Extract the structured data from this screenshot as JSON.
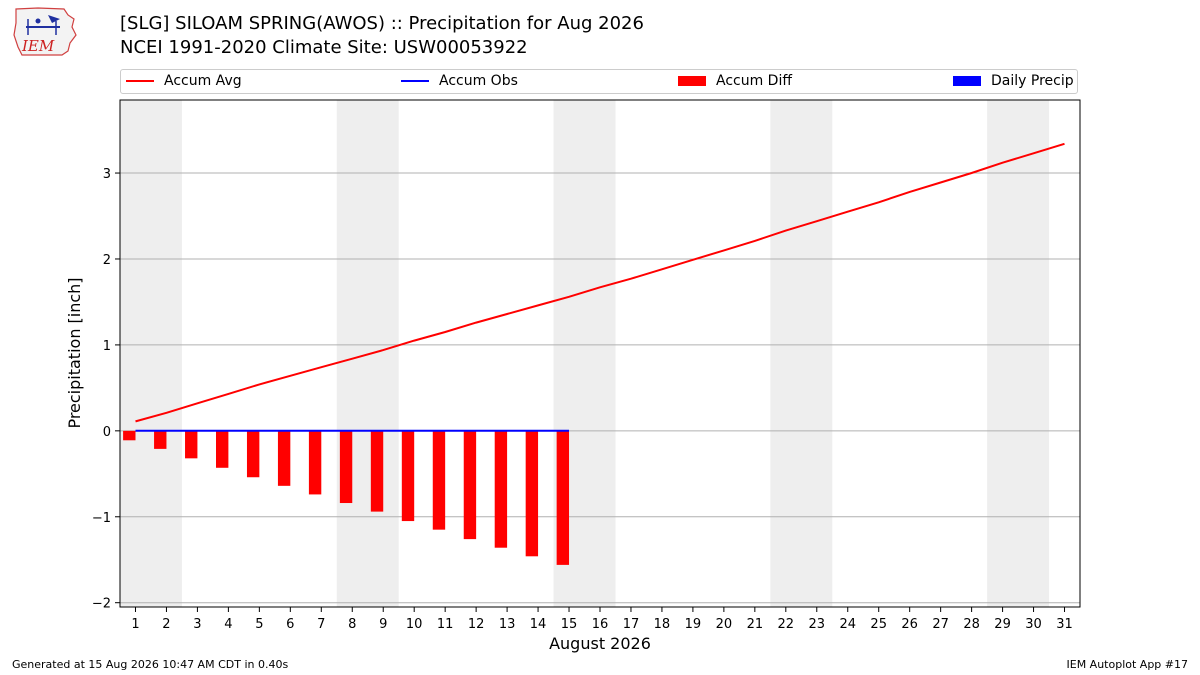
{
  "header": {
    "title": "[SLG] SILOAM SPRING(AWOS) :: Precipitation for Aug 2026",
    "subtitle": "NCEI 1991-2020 Climate Site: USW00053922",
    "logo_text": "IEM"
  },
  "legend": {
    "items": [
      {
        "label": "Accum Avg",
        "kind": "line",
        "color": "#ff0000"
      },
      {
        "label": "Accum Obs",
        "kind": "line",
        "color": "#0000ff"
      },
      {
        "label": "Accum Diff",
        "kind": "box",
        "color": "#ff0000"
      },
      {
        "label": "Daily Precip",
        "kind": "box",
        "color": "#0000ff"
      }
    ]
  },
  "footer": {
    "left": "Generated at 15 Aug 2026 10:47 AM CDT in 0.40s",
    "right": "IEM Autoplot App #17"
  },
  "chart_data": {
    "type": "bar",
    "xlabel": "August 2026",
    "ylabel": "Precipitation [inch]",
    "xlim": [
      0.5,
      31.5
    ],
    "ylim": [
      -2.05,
      3.85
    ],
    "yticks": [
      -2,
      -1,
      0,
      1,
      2,
      3
    ],
    "xticks": [
      1,
      2,
      3,
      4,
      5,
      6,
      7,
      8,
      9,
      10,
      11,
      12,
      13,
      14,
      15,
      16,
      17,
      18,
      19,
      20,
      21,
      22,
      23,
      24,
      25,
      26,
      27,
      28,
      29,
      30,
      31
    ],
    "grid": "horizontal",
    "weekend_shading": [
      [
        1,
        2
      ],
      [
        8,
        9
      ],
      [
        15,
        16
      ],
      [
        22,
        23
      ],
      [
        29,
        30
      ]
    ],
    "colors": {
      "accum_avg": "#ff0000",
      "accum_obs": "#0000ff",
      "accum_diff": "#ff0000",
      "daily_precip": "#0000ff",
      "weekend": "#eeeeee",
      "grid": "#b0b0b0"
    },
    "series": [
      {
        "name": "Accum Avg",
        "type": "line",
        "x": [
          1,
          2,
          3,
          4,
          5,
          6,
          7,
          8,
          9,
          10,
          11,
          12,
          13,
          14,
          15,
          16,
          17,
          18,
          19,
          20,
          21,
          22,
          23,
          24,
          25,
          26,
          27,
          28,
          29,
          30,
          31
        ],
        "values": [
          0.11,
          0.21,
          0.32,
          0.43,
          0.54,
          0.64,
          0.74,
          0.84,
          0.94,
          1.05,
          1.15,
          1.26,
          1.36,
          1.46,
          1.56,
          1.67,
          1.77,
          1.88,
          1.99,
          2.1,
          2.21,
          2.33,
          2.44,
          2.55,
          2.66,
          2.78,
          2.89,
          3.0,
          3.12,
          3.23,
          3.34
        ]
      },
      {
        "name": "Accum Obs",
        "type": "line",
        "x": [
          1,
          2,
          3,
          4,
          5,
          6,
          7,
          8,
          9,
          10,
          11,
          12,
          13,
          14,
          15
        ],
        "values": [
          0,
          0,
          0,
          0,
          0,
          0,
          0,
          0,
          0,
          0,
          0,
          0,
          0,
          0,
          0
        ]
      },
      {
        "name": "Accum Diff",
        "type": "bar",
        "x": [
          1,
          2,
          3,
          4,
          5,
          6,
          7,
          8,
          9,
          10,
          11,
          12,
          13,
          14,
          15
        ],
        "values": [
          -0.11,
          -0.21,
          -0.32,
          -0.43,
          -0.54,
          -0.64,
          -0.74,
          -0.84,
          -0.94,
          -1.05,
          -1.15,
          -1.26,
          -1.36,
          -1.46,
          -1.56
        ]
      },
      {
        "name": "Daily Precip",
        "type": "bar",
        "x": [
          1,
          2,
          3,
          4,
          5,
          6,
          7,
          8,
          9,
          10,
          11,
          12,
          13,
          14,
          15
        ],
        "values": [
          0,
          0,
          0,
          0,
          0,
          0,
          0,
          0,
          0,
          0,
          0,
          0,
          0,
          0,
          0
        ]
      }
    ]
  }
}
